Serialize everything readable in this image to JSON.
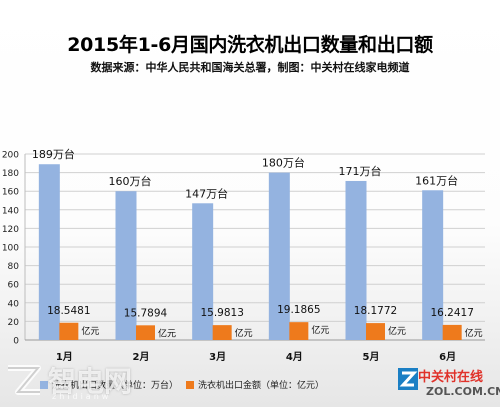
{
  "title": "2015年1-6月国内洗衣机出口数量和出口额",
  "subtitle": "数据来源：中华人民共和国海关总署，制图：中关村在线家电频道",
  "colors": {
    "quantity": "#94b3e0",
    "value": "#ee7a1c",
    "grid": "#d0d0d0"
  },
  "legend": {
    "quantity": "洗衣机出口数量（单位：万台）",
    "value": "洗衣机出口金额（单位：亿元）"
  },
  "watermarks": {
    "left_icon": "zol-logo-icon",
    "left_text": "智电网",
    "left_small": "zhidianw",
    "right_icon": "zol-z-logo-icon",
    "right_brand": "中关村在线",
    "right_domain": "ZOL.COM.CN"
  },
  "chart_data": {
    "type": "bar",
    "categories": [
      "1月",
      "2月",
      "3月",
      "4月",
      "5月",
      "6月"
    ],
    "ylim": [
      0,
      200
    ],
    "yticks": [
      0,
      20,
      40,
      60,
      80,
      100,
      120,
      140,
      160,
      180,
      200
    ],
    "grid": true,
    "legend_position": "bottom",
    "series": [
      {
        "name": "洗衣机出口数量（单位：万台）",
        "values": [
          189,
          160,
          147,
          180,
          171,
          161
        ],
        "labels": [
          "189万台",
          "160万台",
          "147万台",
          "180万台",
          "171万台",
          "161万台"
        ]
      },
      {
        "name": "洗衣机出口金额（单位：亿元）",
        "values": [
          18.5481,
          15.7894,
          15.9813,
          19.1865,
          18.1772,
          16.2417
        ],
        "labels": [
          "18.5481",
          "15.7894",
          "15.9813",
          "19.1865",
          "18.1772",
          "16.2417"
        ],
        "unit_label": "亿元"
      }
    ]
  }
}
